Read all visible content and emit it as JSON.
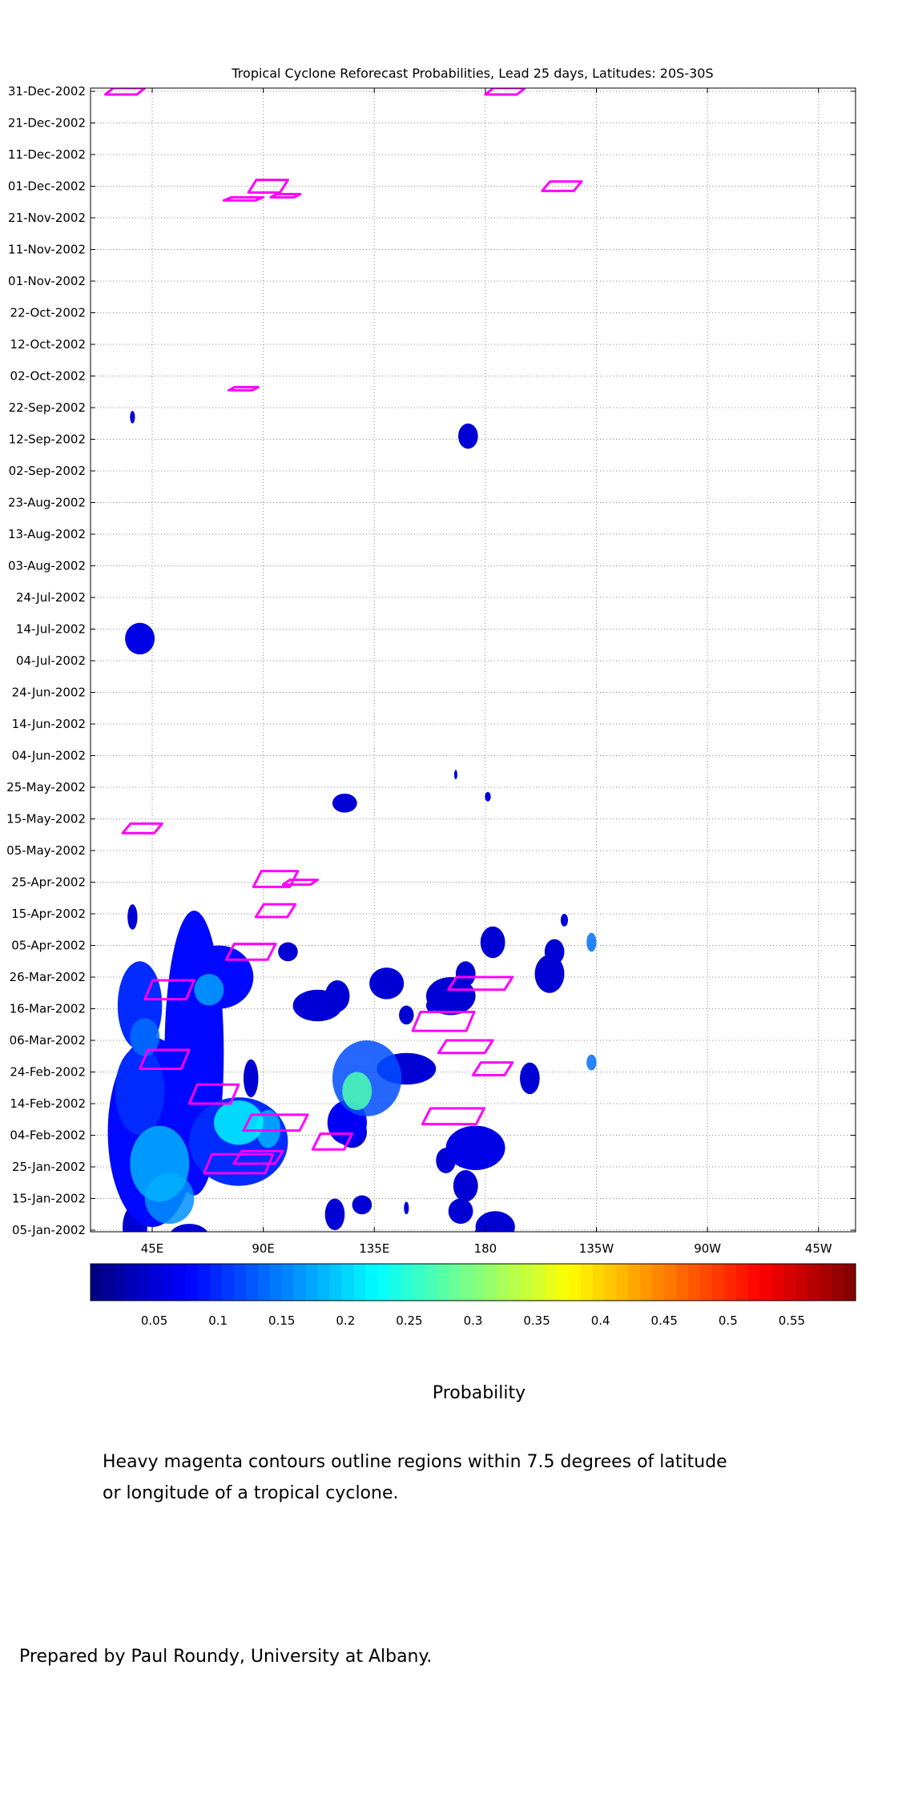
{
  "chart_data": {
    "type": "heatmap",
    "title": "Tropical Cyclone Reforecast Probabilities, Lead 25 days, Latitudes: 20S-30S",
    "x_tick_labels": [
      "45E",
      "90E",
      "135E",
      "180",
      "135W",
      "90W",
      "45W"
    ],
    "x_tick_lons": [
      45,
      90,
      135,
      180,
      225,
      270,
      315
    ],
    "x_range": [
      20,
      330
    ],
    "y_tick_labels": [
      "31-Dec-2002",
      "21-Dec-2002",
      "11-Dec-2002",
      "01-Dec-2002",
      "21-Nov-2002",
      "11-Nov-2002",
      "01-Nov-2002",
      "22-Oct-2002",
      "12-Oct-2002",
      "02-Oct-2002",
      "22-Sep-2002",
      "12-Sep-2002",
      "02-Sep-2002",
      "23-Aug-2002",
      "13-Aug-2002",
      "03-Aug-2002",
      "24-Jul-2002",
      "14-Jul-2002",
      "04-Jul-2002",
      "24-Jun-2002",
      "14-Jun-2002",
      "04-Jun-2002",
      "25-May-2002",
      "15-May-2002",
      "05-May-2002",
      "25-Apr-2002",
      "15-Apr-2002",
      "05-Apr-2002",
      "26-Mar-2002",
      "16-Mar-2002",
      "06-Mar-2002",
      "24-Feb-2002",
      "14-Feb-2002",
      "04-Feb-2002",
      "25-Jan-2002",
      "15-Jan-2002",
      "05-Jan-2002"
    ],
    "colorbar": {
      "tick_labels": [
        "0.05",
        "0.1",
        "0.15",
        "0.2",
        "0.25",
        "0.3",
        "0.35",
        "0.4",
        "0.45",
        "0.5",
        "0.55"
      ],
      "tick_values": [
        0.05,
        0.1,
        0.15,
        0.2,
        0.25,
        0.3,
        0.35,
        0.4,
        0.45,
        0.5,
        0.55
      ],
      "range": [
        0,
        0.6
      ],
      "colormap": "jet"
    },
    "grid": true,
    "blobs": [
      {
        "lon": 38,
        "day": 5,
        "rlon": 5,
        "rday": 7,
        "p": 0.05
      },
      {
        "lon": 60,
        "day": 2,
        "rlon": 8,
        "rday": 4,
        "p": 0.05
      },
      {
        "lon": 130,
        "day": 12,
        "rlon": 4,
        "rday": 3,
        "p": 0.05
      },
      {
        "lon": 126,
        "day": 35,
        "rlon": 6,
        "rday": 5,
        "p": 0.05
      },
      {
        "lon": 148,
        "day": 11,
        "rlon": 1,
        "rday": 2,
        "p": 0.05
      },
      {
        "lon": 179,
        "day": 2,
        "rlon": 4,
        "rday": 3,
        "p": 0.05
      },
      {
        "lon": 37,
        "day": 103,
        "rlon": 2,
        "rday": 4,
        "p": 0.05
      },
      {
        "lon": 212,
        "day": 102,
        "rlon": 1.5,
        "rday": 2,
        "p": 0.05
      },
      {
        "lon": 123,
        "day": 139,
        "rlon": 5,
        "rday": 3,
        "p": 0.05
      },
      {
        "lon": 181,
        "day": 141,
        "rlon": 1.2,
        "rday": 1.5,
        "p": 0.05
      },
      {
        "lon": 168,
        "day": 148,
        "rlon": 0.6,
        "rday": 1.5,
        "p": 0.05
      },
      {
        "lon": 40,
        "day": 191,
        "rlon": 6,
        "rday": 5,
        "p": 0.06
      },
      {
        "lon": 37,
        "day": 261,
        "rlon": 1,
        "rday": 2,
        "p": 0.05
      },
      {
        "lon": 173,
        "day": 255,
        "rlon": 4,
        "rday": 4,
        "p": 0.05
      },
      {
        "lon": 45,
        "day": 35,
        "rlon": 18,
        "rday": 30,
        "p": 0.08
      },
      {
        "lon": 48,
        "day": 25,
        "rlon": 12,
        "rday": 12,
        "p": 0.18
      },
      {
        "lon": 52,
        "day": 14,
        "rlon": 10,
        "rday": 8,
        "p": 0.16
      },
      {
        "lon": 40,
        "day": 48,
        "rlon": 10,
        "rday": 14,
        "p": 0.1
      },
      {
        "lon": 40,
        "day": 75,
        "rlon": 9,
        "rday": 14,
        "p": 0.1
      },
      {
        "lon": 42,
        "day": 65,
        "rlon": 6,
        "rday": 6,
        "p": 0.14
      },
      {
        "lon": 62,
        "day": 60,
        "rlon": 12,
        "rday": 45,
        "p": 0.08
      },
      {
        "lon": 72,
        "day": 84,
        "rlon": 14,
        "rday": 10,
        "p": 0.08
      },
      {
        "lon": 68,
        "day": 80,
        "rlon": 6,
        "rday": 5,
        "p": 0.17
      },
      {
        "lon": 80,
        "day": 32,
        "rlon": 20,
        "rday": 14,
        "p": 0.1
      },
      {
        "lon": 80,
        "day": 38,
        "rlon": 10,
        "rday": 7,
        "p": 0.22
      },
      {
        "lon": 92,
        "day": 36,
        "rlon": 5,
        "rday": 6,
        "p": 0.18
      },
      {
        "lon": 85,
        "day": 52,
        "rlon": 3,
        "rday": 6,
        "p": 0.05
      },
      {
        "lon": 132,
        "day": 52,
        "rlon": 14,
        "rday": 12,
        "p": 0.12
      },
      {
        "lon": 128,
        "day": 48,
        "rlon": 6,
        "rday": 6,
        "p": 0.27
      },
      {
        "lon": 124,
        "day": 38,
        "rlon": 8,
        "rday": 7,
        "p": 0.07
      },
      {
        "lon": 112,
        "day": 75,
        "rlon": 10,
        "rday": 5,
        "p": 0.05
      },
      {
        "lon": 120,
        "day": 78,
        "rlon": 5,
        "rday": 5,
        "p": 0.05
      },
      {
        "lon": 119,
        "day": 9,
        "rlon": 4,
        "rday": 5,
        "p": 0.05
      },
      {
        "lon": 100,
        "day": 92,
        "rlon": 4,
        "rday": 3,
        "p": 0.05
      },
      {
        "lon": 140,
        "day": 82,
        "rlon": 7,
        "rday": 5,
        "p": 0.05
      },
      {
        "lon": 148,
        "day": 72,
        "rlon": 3,
        "rday": 3,
        "p": 0.05
      },
      {
        "lon": 148,
        "day": 55,
        "rlon": 12,
        "rday": 5,
        "p": 0.05
      },
      {
        "lon": 166,
        "day": 78,
        "rlon": 10,
        "rday": 6,
        "p": 0.05
      },
      {
        "lon": 172,
        "day": 85,
        "rlon": 4,
        "rday": 4,
        "p": 0.05
      },
      {
        "lon": 158,
        "day": 75,
        "rlon": 2,
        "rday": 2,
        "p": 0.05
      },
      {
        "lon": 183,
        "day": 95,
        "rlon": 5,
        "rday": 5,
        "p": 0.05
      },
      {
        "lon": 176,
        "day": 30,
        "rlon": 12,
        "rday": 7,
        "p": 0.06
      },
      {
        "lon": 172,
        "day": 18,
        "rlon": 5,
        "rday": 5,
        "p": 0.05
      },
      {
        "lon": 170,
        "day": 10,
        "rlon": 5,
        "rday": 4,
        "p": 0.05
      },
      {
        "lon": 184,
        "day": 5,
        "rlon": 8,
        "rday": 5,
        "p": 0.05
      },
      {
        "lon": 164,
        "day": 26,
        "rlon": 4,
        "rday": 4,
        "p": 0.05
      },
      {
        "lon": 198,
        "day": 52,
        "rlon": 4,
        "rday": 5,
        "p": 0.05
      },
      {
        "lon": 206,
        "day": 85,
        "rlon": 6,
        "rday": 6,
        "p": 0.05
      },
      {
        "lon": 208,
        "day": 92,
        "rlon": 4,
        "rday": 4,
        "p": 0.05
      },
      {
        "lon": 223,
        "day": 57,
        "rlon": 2,
        "rday": 2.5,
        "p": 0.14
      },
      {
        "lon": 223,
        "day": 95,
        "rlon": 2,
        "rday": 3,
        "p": 0.14
      }
    ],
    "contours": [
      {
        "lon": 48,
        "day": 1,
        "w": 16,
        "h": 3
      },
      {
        "lon": 50,
        "day": 58,
        "w": 20,
        "h": 6
      },
      {
        "lon": 70,
        "day": 47,
        "w": 20,
        "h": 6
      },
      {
        "lon": 52,
        "day": 80,
        "w": 20,
        "h": 6
      },
      {
        "lon": 80,
        "day": 25,
        "w": 28,
        "h": 6
      },
      {
        "lon": 95,
        "day": 38,
        "w": 26,
        "h": 5
      },
      {
        "lon": 88,
        "day": 27,
        "w": 20,
        "h": 4
      },
      {
        "lon": 118,
        "day": 32,
        "w": 16,
        "h": 5
      },
      {
        "lon": 85,
        "day": 92,
        "w": 20,
        "h": 5
      },
      {
        "lon": 95,
        "day": 105,
        "w": 16,
        "h": 4
      },
      {
        "lon": 95,
        "day": 115,
        "w": 18,
        "h": 5
      },
      {
        "lon": 105,
        "day": 114,
        "w": 14,
        "h": 1.5
      },
      {
        "lon": 140,
        "day": 2,
        "w": 16,
        "h": 2
      },
      {
        "lon": 167,
        "day": 40,
        "w": 25,
        "h": 5
      },
      {
        "lon": 172,
        "day": 62,
        "w": 22,
        "h": 4
      },
      {
        "lon": 183,
        "day": 55,
        "w": 16,
        "h": 4
      },
      {
        "lon": 163,
        "day": 70,
        "w": 25,
        "h": 6
      },
      {
        "lon": 178,
        "day": 82,
        "w": 26,
        "h": 4
      },
      {
        "lon": 190,
        "day": 1,
        "w": 16,
        "h": 2
      },
      {
        "lon": 41,
        "day": 131,
        "w": 16,
        "h": 3
      },
      {
        "lon": 82,
        "day": 330,
        "w": 16,
        "h": 1
      },
      {
        "lon": 92,
        "day": 334,
        "w": 16,
        "h": 4
      },
      {
        "lon": 99,
        "day": 331,
        "w": 12,
        "h": 1
      },
      {
        "lon": 82,
        "day": 270,
        "w": 12,
        "h": 1
      },
      {
        "lon": 211,
        "day": 334,
        "w": 16,
        "h": 3
      },
      {
        "lon": 34,
        "day": 364,
        "w": 16,
        "h": 2
      },
      {
        "lon": 188,
        "day": 364,
        "w": 16,
        "h": 2
      }
    ]
  },
  "labels": {
    "probability": "Probability",
    "note_line1": "Heavy magenta contours outline regions within 7.5 degrees of latitude",
    "note_line2": "or longitude of a tropical cyclone.",
    "credit": "Prepared by Paul Roundy, University at Albany."
  },
  "colors": {
    "contour": "#ff00ff",
    "grid": "#888888"
  }
}
